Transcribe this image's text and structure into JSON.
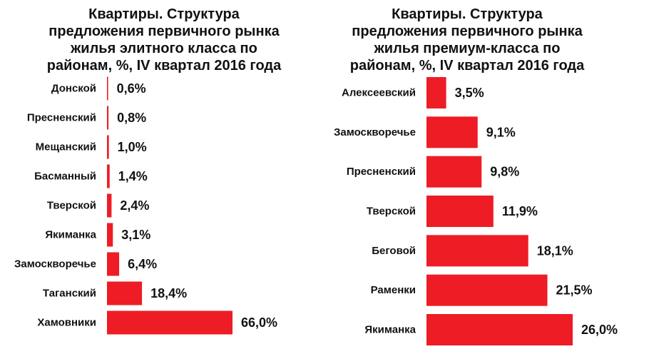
{
  "colors": {
    "bar": "#ee1c25",
    "text": "#111111",
    "background": "#ffffff"
  },
  "chart_data": [
    {
      "type": "bar",
      "orientation": "horizontal",
      "title_lines": [
        "Квартиры. Структура",
        "предложения первичного рынка",
        "жилья элитного класса  по",
        "районам, %, IV  квартал 2016 года"
      ],
      "categories": [
        "Донской",
        "Пресненский",
        "Мещанский",
        "Басманный",
        "Тверской",
        "Якиманка",
        "Замоскворечье",
        "Таганский",
        "Хамовники"
      ],
      "values": [
        0.6,
        0.8,
        1.0,
        1.4,
        2.4,
        3.1,
        6.4,
        18.4,
        66.0
      ],
      "value_labels": [
        "0,6%",
        "0,8%",
        "1,0%",
        "1,4%",
        "2,4%",
        "3,1%",
        "6,4%",
        "18,4%",
        "66,0%"
      ],
      "xlim": [
        0,
        66.0
      ],
      "grid": false,
      "legend": "none"
    },
    {
      "type": "bar",
      "orientation": "horizontal",
      "title_lines": [
        "Квартиры. Структура",
        "предложения первичного рынка",
        "жилья премиум-класса  по",
        "районам, %, IV  квартал 2016 года"
      ],
      "categories": [
        "Алексеевский",
        "Замоскворечье",
        "Пресненский",
        "Тверской",
        "Беговой",
        "Раменки",
        "Якиманка"
      ],
      "values": [
        3.5,
        9.1,
        9.8,
        11.9,
        18.1,
        21.5,
        26.0
      ],
      "value_labels": [
        "3,5%",
        "9,1%",
        "9,8%",
        "11,9%",
        "18,1%",
        "21,5%",
        "26,0%"
      ],
      "xlim": [
        0,
        26.0
      ],
      "grid": false,
      "legend": "none"
    }
  ]
}
